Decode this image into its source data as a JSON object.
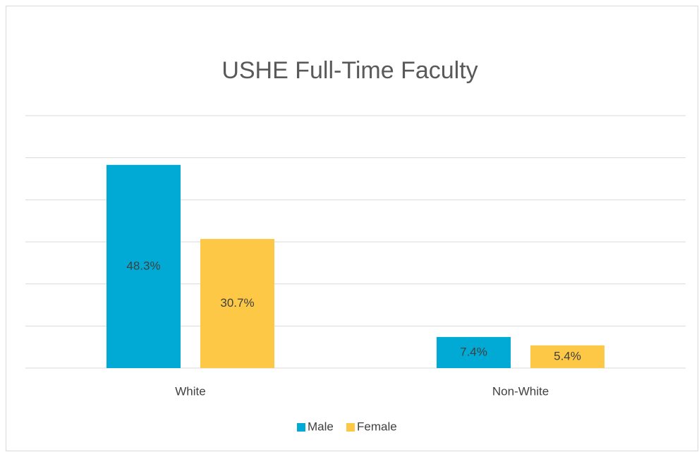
{
  "chart_data": {
    "type": "bar",
    "title": "USHE Full-Time Faculty",
    "categories": [
      "White",
      "Non-White"
    ],
    "series": [
      {
        "name": "Male",
        "color": "#00aad4",
        "values": [
          48.3,
          7.4
        ],
        "value_labels": [
          "48.3%",
          "7.4%"
        ]
      },
      {
        "name": "Female",
        "color": "#fdc845",
        "values": [
          30.7,
          5.4
        ],
        "value_labels": [
          "30.7%",
          "5.4%"
        ]
      }
    ],
    "ylim": [
      0,
      60
    ],
    "yticks": [
      0,
      10,
      20,
      30,
      40,
      50,
      60
    ],
    "grid": true,
    "legend": "bottom"
  }
}
